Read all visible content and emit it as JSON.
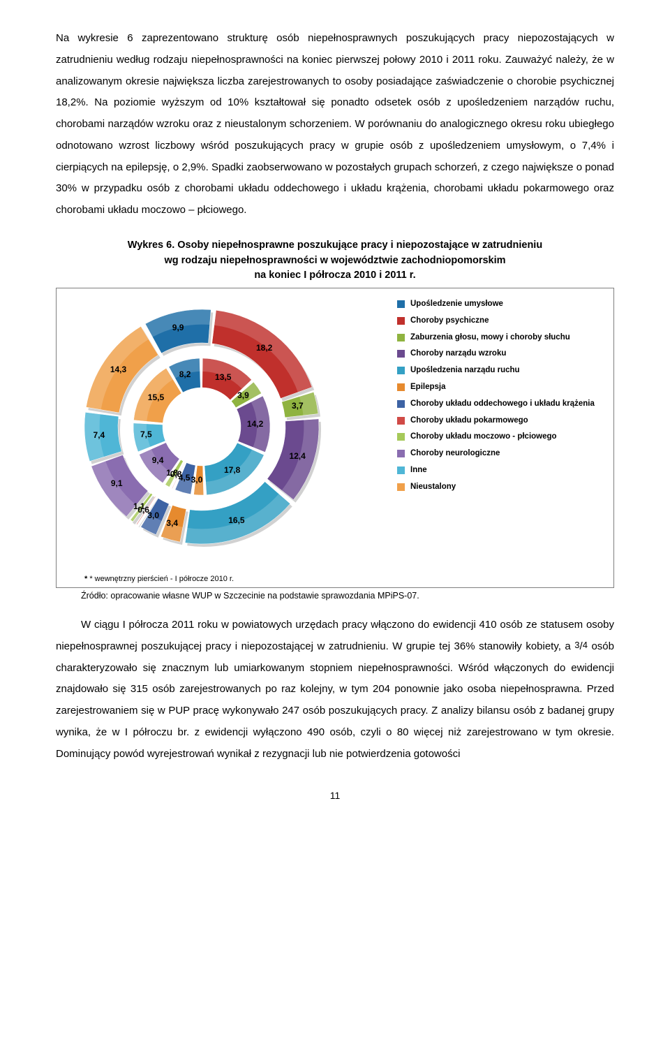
{
  "paragraph1": "Na wykresie 6 zaprezentowano strukturę osób niepełnosprawnych poszukujących pracy niepozostających w zatrudnieniu według rodzaju niepełnosprawności na koniec pierwszej połowy 2010 i 2011 roku. Zauważyć należy, że w analizowanym okresie największa liczba zarejestrowanych to osoby posiadające zaświadczenie o chorobie psychicznej 18,2%. Na poziomie wyższym od 10% kształtował się ponadto odsetek osób z upośledzeniem narządów ruchu, chorobami narządów wzroku oraz z nieustalonym schorzeniem. W porównaniu do analogicznego okresu roku ubiegłego odnotowano wzrost liczbowy wśród poszukujących pracy w grupie osób z upośledzeniem umysłowym, o 7,4% i cierpiących na epilepsję, o 2,9%. Spadki zaobserwowano w pozostałych grupach schorzeń, z czego największe o ponad 30% w przypadku osób z chorobami układu oddechowego i układu krążenia, chorobami układu pokarmowego oraz chorobami układu moczowo – płciowego.",
  "chart_title_l1": "Wykres 6. Osoby niepełnosprawne poszukujące pracy i niepozostające w zatrudnieniu",
  "chart_title_l2": "wg rodzaju niepełnosprawności w województwie zachodniopomorskim",
  "chart_title_l3": "na koniec I półrocza 2010 i 2011 r.",
  "legend": [
    {
      "label": "Upośledzenie umysłowe",
      "color": "#1f6fa8"
    },
    {
      "label": "Choroby psychiczne",
      "color": "#c0302c"
    },
    {
      "label": "Zaburzenia głosu, mowy i choroby słuchu",
      "color": "#8fb340"
    },
    {
      "label": "Choroby narządu wzroku",
      "color": "#6b4a8f"
    },
    {
      "label": "Upośledzenia narządu ruchu",
      "color": "#34a0c4"
    },
    {
      "label": "Epilepsja",
      "color": "#e68a2e"
    },
    {
      "label": "Choroby układu oddechowego i układu krążenia",
      "color": "#3d63a4"
    },
    {
      "label": "Choroby układu pokarmowego",
      "color": "#d04a46"
    },
    {
      "label": "Choroby układu moczowo - płciowego",
      "color": "#a6c95a"
    },
    {
      "label": "Choroby neurologiczne",
      "color": "#8a6db0"
    },
    {
      "label": "Inne",
      "color": "#4fb6d6"
    },
    {
      "label": "Nieustalony",
      "color": "#f0a04a"
    }
  ],
  "inner_ring": {
    "values": [
      8.2,
      13.5,
      3.9,
      14.2,
      17.8,
      3.0,
      4.5,
      0.8,
      1.8,
      9.4,
      7.5,
      15.5
    ],
    "labels": [
      "8,2",
      "13,5",
      "3,9",
      "14,2",
      "17,8",
      "3,0",
      "4,5",
      "0,8",
      "1,8",
      "9,4",
      "7,5",
      "15,5"
    ],
    "colors": [
      "#1f6fa8",
      "#c0302c",
      "#8fb340",
      "#6b4a8f",
      "#34a0c4",
      "#e68a2e",
      "#3d63a4",
      "#d04a46",
      "#a6c95a",
      "#8a6db0",
      "#4fb6d6",
      "#f0a04a"
    ]
  },
  "outer_ring": {
    "values": [
      9.9,
      18.2,
      3.7,
      12.4,
      16.5,
      3.4,
      3.0,
      0.6,
      1.1,
      9.1,
      7.4,
      14.3
    ],
    "labels": [
      "9,9",
      "18,2",
      "3,7",
      "12,4",
      "16,5",
      "3,4",
      "3,0",
      "0,6",
      "1,1",
      "9,1",
      "7,4",
      "14,3"
    ],
    "colors": [
      "#1f6fa8",
      "#c0302c",
      "#8fb340",
      "#6b4a8f",
      "#34a0c4",
      "#e68a2e",
      "#3d63a4",
      "#d04a46",
      "#a6c95a",
      "#8a6db0",
      "#4fb6d6",
      "#f0a04a"
    ]
  },
  "footnote": "* wewnętrzny pierścień -  I półrocze 2010 r.",
  "source": "Źródło: opracowanie własne WUP w Szczecinie na podstawie sprawozdania MPiPS-07.",
  "paragraph2_a": "W ciągu I półrocza 2011 roku w powiatowych urzędach pracy włączono do ewidencji 410 osób ze statusem osoby niepełnosprawnej poszukującej pracy i niepozostającej w zatrudnieniu. W grupie tej 36% stanowiły kobiety, a ",
  "paragraph2_frac_num": "3",
  "paragraph2_frac_den": "4",
  "paragraph2_b": " osób charakteryzowało się znacznym lub umiarkowanym stopniem niepełnosprawności. Wśród włączonych do ewidencji znajdowało się 315 osób zarejestrowanych po raz kolejny, w tym 204 ponownie jako osoba niepełnosprawna. Przed zarejestrowaniem się w PUP pracę wykonywało 247 osób poszukujących pracy. Z analizy bilansu osób z badanej grupy wynika, że w I półroczu br. z ewidencji wyłączono 490 osób, czyli o 80 więcej niż zarejestrowano w tym okresie. Dominujący powód wyrejestrowań wynikał z rezygnacji lub nie potwierdzenia gotowości",
  "page_num": "11"
}
